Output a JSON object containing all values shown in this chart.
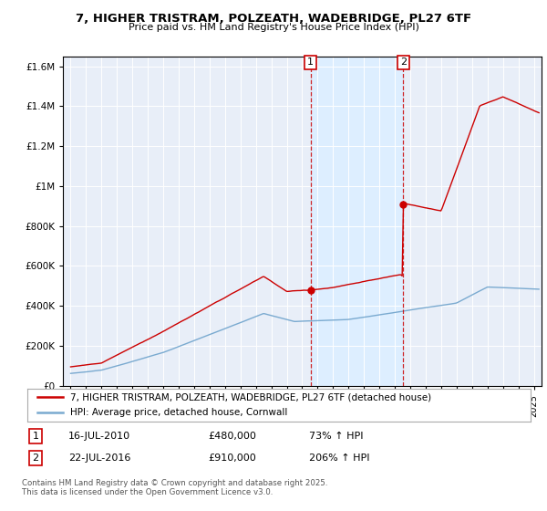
{
  "title_line1": "7, HIGHER TRISTRAM, POLZEATH, WADEBRIDGE, PL27 6TF",
  "title_line2": "Price paid vs. HM Land Registry's House Price Index (HPI)",
  "legend_line1": "7, HIGHER TRISTRAM, POLZEATH, WADEBRIDGE, PL27 6TF (detached house)",
  "legend_line2": "HPI: Average price, detached house, Cornwall",
  "footnote": "Contains HM Land Registry data © Crown copyright and database right 2025.\nThis data is licensed under the Open Government Licence v3.0.",
  "annotation1": {
    "label": "1",
    "date": "16-JUL-2010",
    "price": "£480,000",
    "hpi": "73% ↑ HPI"
  },
  "annotation2": {
    "label": "2",
    "date": "22-JUL-2016",
    "price": "£910,000",
    "hpi": "206% ↑ HPI"
  },
  "property_color": "#cc0000",
  "hpi_color": "#7aaad0",
  "shade_color": "#ddeeff",
  "background_color": "#ffffff",
  "plot_bg_color": "#e8eef8",
  "ylim": [
    0,
    1650000
  ],
  "yticks": [
    0,
    200000,
    400000,
    600000,
    800000,
    1000000,
    1200000,
    1400000,
    1600000
  ],
  "xlim_start": 1994.5,
  "xlim_end": 2025.5,
  "sale1_x": 2010.54,
  "sale1_y": 480000,
  "sale2_x": 2016.55,
  "sale2_y": 910000,
  "vline1_x": 2010.54,
  "vline2_x": 2016.55
}
